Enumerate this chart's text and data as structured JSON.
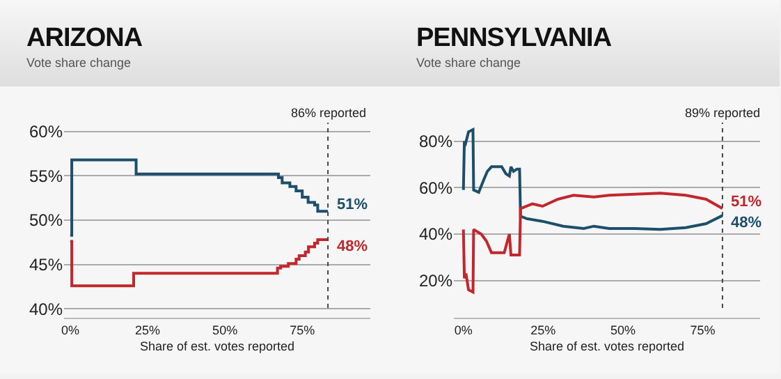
{
  "chart_data": [
    {
      "type": "step",
      "title": "ARIZONA",
      "subtitle": "Vote share change",
      "xlabel": "Share of est. votes reported",
      "series": [
        {
          "color": "#1d4f6b",
          "x": [
            0,
            0.5,
            21.3,
            67.3,
            68.5,
            71,
            73,
            75,
            76.9,
            79,
            80,
            83.3
          ],
          "values": [
            48.3,
            56.8,
            55.2,
            54.8,
            54.2,
            53.8,
            53.3,
            52.6,
            52.0,
            51.7,
            51.0,
            51.0
          ],
          "value_labels": [
            null,
            null,
            null,
            null,
            null,
            null,
            null,
            null,
            null,
            null,
            null,
            "51%"
          ]
        },
        {
          "color": "#c1272d",
          "x": [
            0,
            0.5,
            20.5,
            67,
            68,
            70.5,
            73,
            74,
            76,
            77,
            79,
            80,
            83.3
          ],
          "values": [
            47.6,
            42.6,
            44.0,
            44.6,
            44.8,
            45.1,
            45.6,
            46.0,
            46.4,
            47.0,
            47.4,
            47.8,
            47.8
          ],
          "value_labels": [
            null,
            null,
            null,
            null,
            null,
            null,
            null,
            null,
            null,
            null,
            null,
            null,
            "48%"
          ]
        }
      ],
      "ref_lines": [
        {
          "axis": "x",
          "value": 83.3,
          "label": "86% reported",
          "line_style": "dotted"
        }
      ],
      "xlim": [
        -2,
        97
      ],
      "xticks": [
        {
          "value": 0,
          "label": "0%"
        },
        {
          "value": 25,
          "label": "25%"
        },
        {
          "value": 50,
          "label": "50%"
        },
        {
          "value": 75,
          "label": "75%"
        }
      ],
      "ylim": [
        39,
        61
      ],
      "yticks": [
        {
          "value": 40,
          "label": "40%"
        },
        {
          "value": 45,
          "label": "45%"
        },
        {
          "value": 50,
          "label": "50%"
        },
        {
          "value": 55,
          "label": "55%"
        },
        {
          "value": 60,
          "label": "60%"
        }
      ],
      "grid": "y",
      "line_style": "solid"
    },
    {
      "type": "line",
      "title": "PENNSYLVANIA",
      "subtitle": "Vote share change",
      "xlabel": "Share of est. votes reported",
      "series": [
        {
          "color": "#1d4f6b",
          "x": [
            0,
            0.3,
            0.5,
            1.6,
            3.0,
            3.2,
            4.8,
            6.4,
            7.5,
            8.8,
            12,
            13.3,
            14.4,
            14.9,
            15.7,
            16.8,
            17.6,
            17.9,
            20,
            24.8,
            31.3,
            37.7,
            40.9,
            45.7,
            53.7,
            61.7,
            69.7,
            76.1,
            81.2
          ],
          "values": [
            59,
            80,
            78,
            84,
            85,
            59,
            58,
            63.5,
            67,
            69,
            69,
            66,
            65,
            69,
            67,
            68,
            68,
            47.7,
            46.6,
            45.5,
            43.4,
            42.4,
            43.4,
            42.4,
            42.4,
            42,
            42.8,
            44.5,
            48
          ],
          "value_labels": [
            null,
            null,
            null,
            null,
            null,
            null,
            null,
            null,
            null,
            null,
            null,
            null,
            null,
            null,
            null,
            null,
            null,
            null,
            null,
            null,
            null,
            null,
            null,
            null,
            null,
            null,
            null,
            null,
            "48%"
          ]
        },
        {
          "color": "#c1272d",
          "x": [
            0,
            0.3,
            0.8,
            1.6,
            3.0,
            3.2,
            5.6,
            7.2,
            8.8,
            12.8,
            13.6,
            14.4,
            14.9,
            17.6,
            17.9,
            21.6,
            24.8,
            29.6,
            34.5,
            40.9,
            45.7,
            53.7,
            61.7,
            69.7,
            76.1,
            81.2
          ],
          "values": [
            42,
            21,
            23,
            16,
            15,
            42,
            40,
            37,
            32,
            32,
            36,
            40,
            31,
            31,
            51,
            53,
            52,
            55,
            56.7,
            56,
            56.7,
            57.2,
            57.6,
            56.7,
            55,
            51
          ],
          "value_labels": [
            null,
            null,
            null,
            null,
            null,
            null,
            null,
            null,
            null,
            null,
            null,
            null,
            null,
            null,
            null,
            null,
            null,
            null,
            null,
            null,
            null,
            null,
            null,
            null,
            null,
            "51%"
          ]
        }
      ],
      "ref_lines": [
        {
          "axis": "x",
          "value": 81.2,
          "label": "89% reported",
          "line_style": "dotted"
        }
      ],
      "xlim": [
        -3,
        93
      ],
      "xticks": [
        {
          "value": 0,
          "label": "0%"
        },
        {
          "value": 25,
          "label": "25%"
        },
        {
          "value": 50,
          "label": "50%"
        },
        {
          "value": 75,
          "label": "75%"
        }
      ],
      "ylim": [
        4,
        88
      ],
      "yticks": [
        {
          "value": 20,
          "label": "20%"
        },
        {
          "value": 40,
          "label": "40%"
        },
        {
          "value": 60,
          "label": "60%"
        },
        {
          "value": 80,
          "label": "80%"
        }
      ],
      "grid": "y",
      "line_style": "solid"
    }
  ]
}
